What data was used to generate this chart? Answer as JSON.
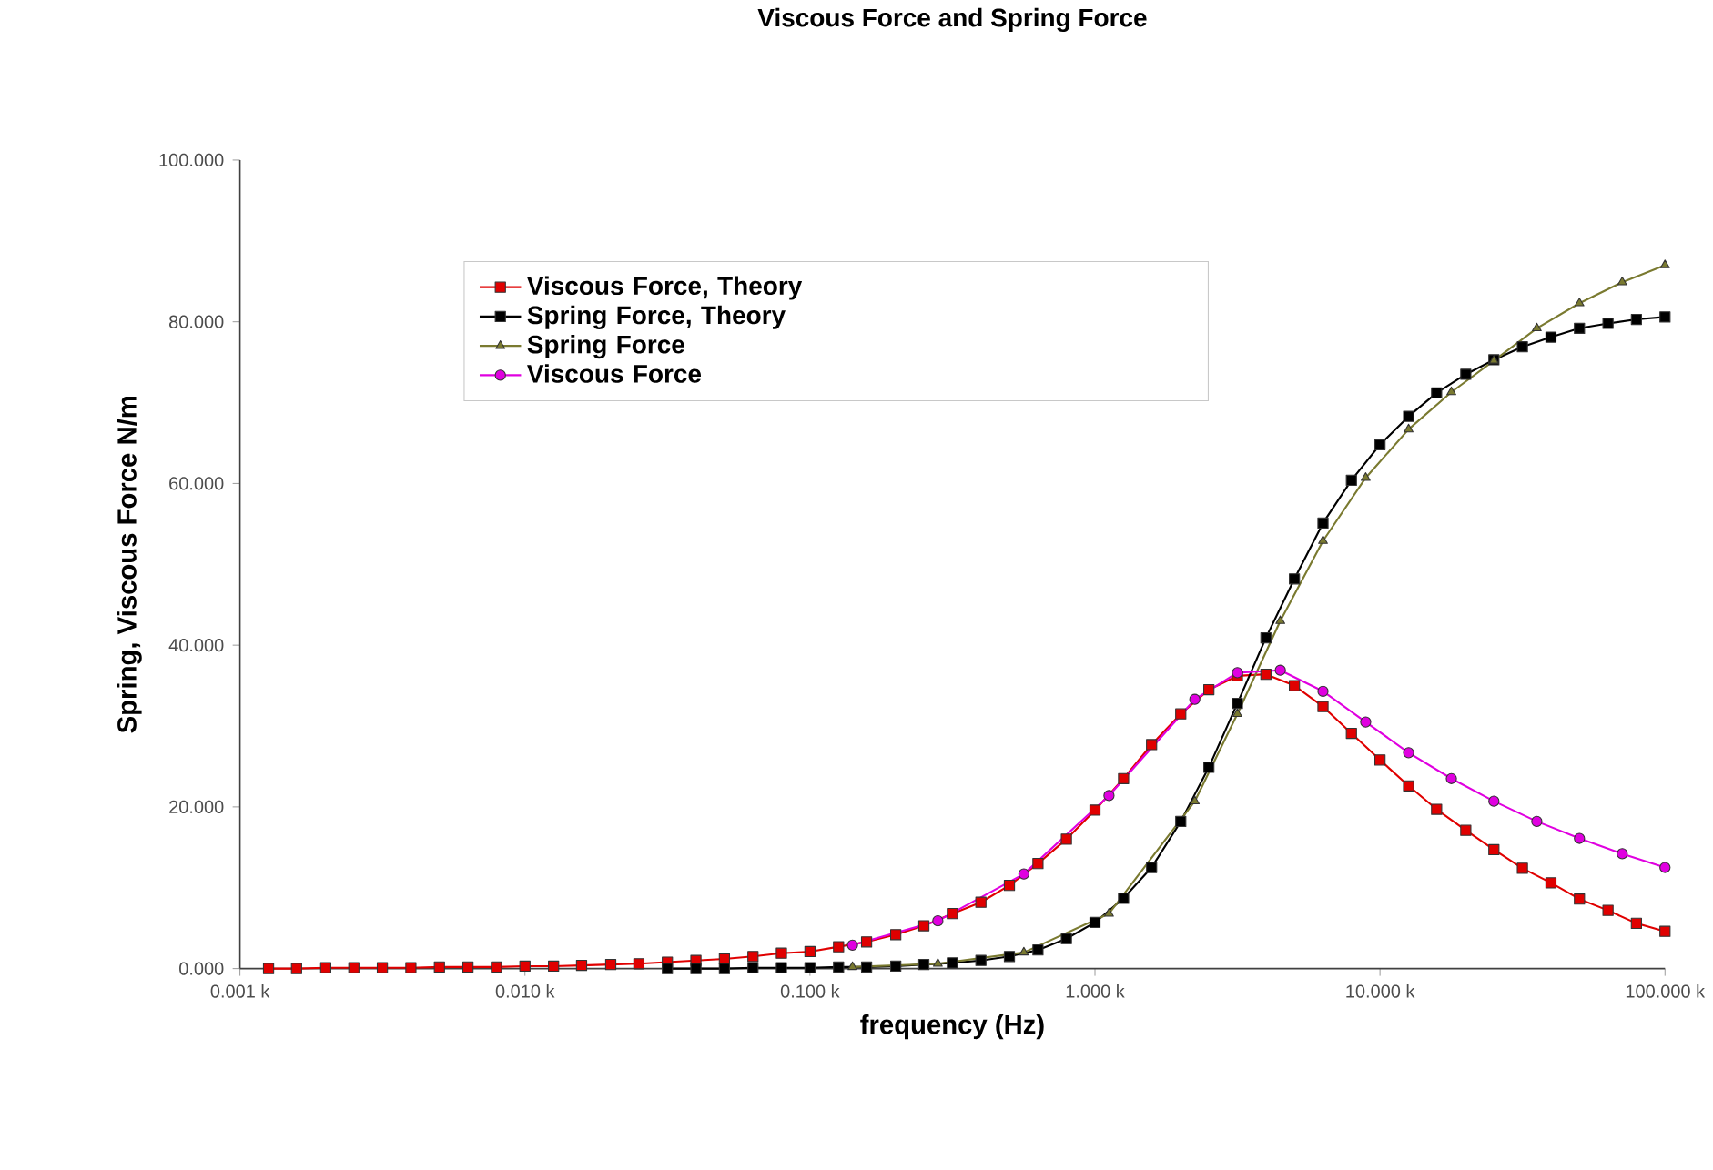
{
  "chart_data": {
    "type": "line",
    "title": "Viscous Force and Spring Force",
    "xlabel": "frequency (Hz)",
    "ylabel": "Spring, Viscous Force  N/m",
    "log": "x",
    "xlim": [
      0.001,
      100
    ],
    "ylim": [
      0,
      100
    ],
    "xticks": [
      {
        "value": 0.001,
        "label": "0.001 k"
      },
      {
        "value": 0.01,
        "label": "0.010 k"
      },
      {
        "value": 0.1,
        "label": "0.100 k"
      },
      {
        "value": 1,
        "label": "1.000 k"
      },
      {
        "value": 10,
        "label": "10.000 k"
      },
      {
        "value": 100,
        "label": "100.000 k"
      }
    ],
    "yticks": [
      {
        "value": 0,
        "label": "0.000"
      },
      {
        "value": 20,
        "label": "20.000"
      },
      {
        "value": 40,
        "label": "40.000"
      },
      {
        "value": 60,
        "label": "60.000"
      },
      {
        "value": 80,
        "label": "80.000"
      },
      {
        "value": 100,
        "label": "100.000"
      }
    ],
    "grid": false,
    "legend": "top left",
    "series": [
      {
        "name": "Viscous Force, Theory",
        "color": "#e00000",
        "marker": "square",
        "x": [
          0.00126,
          0.00158,
          0.002,
          0.00251,
          0.00316,
          0.00398,
          0.00501,
          0.00631,
          0.00794,
          0.01,
          0.0126,
          0.0158,
          0.02,
          0.0251,
          0.0316,
          0.0398,
          0.0501,
          0.0631,
          0.0794,
          0.1,
          0.126,
          0.158,
          0.2,
          0.251,
          0.316,
          0.398,
          0.501,
          0.631,
          0.794,
          1,
          1.26,
          1.58,
          2,
          2.51,
          3.16,
          3.98,
          5.01,
          6.31,
          7.94,
          10,
          12.6,
          15.8,
          20,
          25.1,
          31.6,
          39.8,
          50.1,
          63.1,
          79.4,
          100
        ],
        "values": [
          0.0,
          0.0,
          0.1,
          0.1,
          0.1,
          0.1,
          0.2,
          0.2,
          0.2,
          0.3,
          0.3,
          0.4,
          0.5,
          0.6,
          0.8,
          1.0,
          1.2,
          1.5,
          1.9,
          2.1,
          2.7,
          3.3,
          4.2,
          5.3,
          6.8,
          8.2,
          10.3,
          13.0,
          16.0,
          19.6,
          23.5,
          27.7,
          31.5,
          34.5,
          36.2,
          36.4,
          35.0,
          32.4,
          29.1,
          25.8,
          22.6,
          19.7,
          17.1,
          14.7,
          12.4,
          10.6,
          8.6,
          7.2,
          5.6,
          4.6
        ]
      },
      {
        "name": "Spring Force, Theory",
        "color": "#000000",
        "marker": "square",
        "x": [
          0.0316,
          0.0398,
          0.0501,
          0.0631,
          0.0794,
          0.1,
          0.126,
          0.158,
          0.2,
          0.251,
          0.316,
          0.398,
          0.501,
          0.631,
          0.794,
          1,
          1.26,
          1.58,
          2,
          2.51,
          3.16,
          3.98,
          5.01,
          6.31,
          7.94,
          10,
          12.6,
          15.8,
          20,
          25.1,
          31.6,
          39.8,
          50.1,
          63.1,
          79.4,
          100
        ],
        "values": [
          0.0,
          0.0,
          0.0,
          0.1,
          0.1,
          0.1,
          0.2,
          0.2,
          0.3,
          0.5,
          0.7,
          1.0,
          1.5,
          2.3,
          3.7,
          5.7,
          8.7,
          12.5,
          18.2,
          24.9,
          32.8,
          40.9,
          48.2,
          55.1,
          60.4,
          64.8,
          68.3,
          71.2,
          73.5,
          75.3,
          76.9,
          78.1,
          79.2,
          79.8,
          80.3,
          80.6
        ]
      },
      {
        "name": "Spring Force",
        "color": "#7a7a30",
        "marker": "triangle",
        "x": [
          0.141,
          0.281,
          0.563,
          1.12,
          2.24,
          3.16,
          4.47,
          6.31,
          8.91,
          12.6,
          17.8,
          25.1,
          35.5,
          50.1,
          70.8,
          100
        ],
        "values": [
          0.2,
          0.6,
          2.0,
          6.8,
          20.7,
          31.5,
          43.0,
          52.9,
          60.7,
          66.7,
          71.3,
          75.2,
          79.2,
          82.3,
          84.9,
          87.0
        ]
      },
      {
        "name": "Viscous Force",
        "color": "#e000e0",
        "marker": "circle",
        "x": [
          0.141,
          0.281,
          0.563,
          1.12,
          2.24,
          3.16,
          4.47,
          6.31,
          8.91,
          12.6,
          17.8,
          25.1,
          35.5,
          50.1,
          70.8,
          100
        ],
        "values": [
          2.9,
          5.9,
          11.7,
          21.4,
          33.3,
          36.6,
          36.9,
          34.3,
          30.5,
          26.7,
          23.5,
          20.7,
          18.2,
          16.1,
          14.2,
          12.5
        ]
      }
    ]
  }
}
